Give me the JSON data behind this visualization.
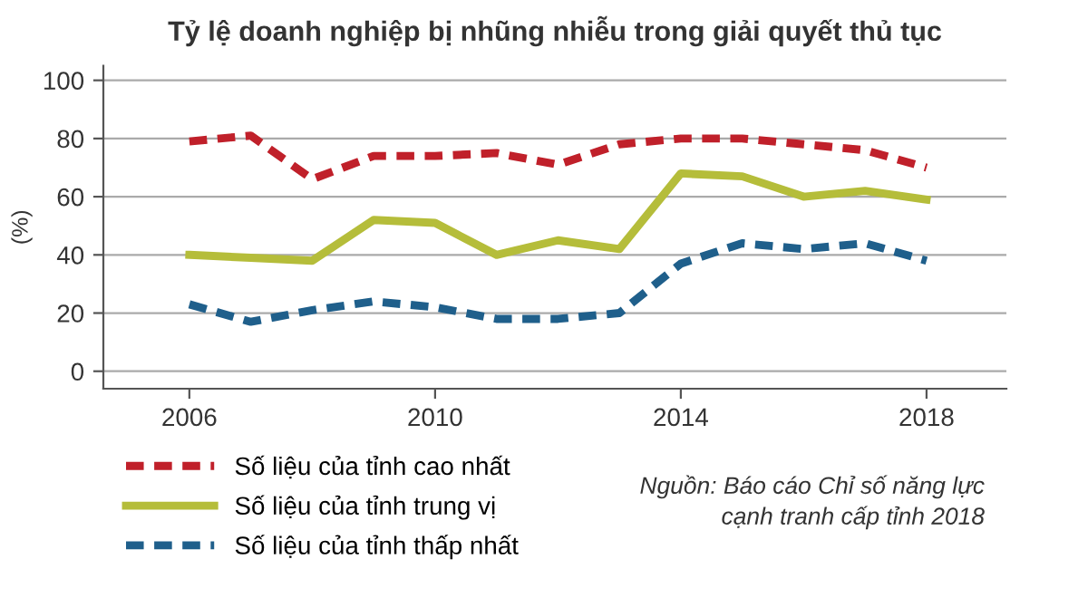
{
  "chart_data": {
    "type": "line",
    "title": "Tỷ lệ doanh nghiệp bị nhũng nhiễu trong giải quyết thủ tục",
    "ylabel": "(%)",
    "x": [
      2006,
      2007,
      2008,
      2009,
      2010,
      2011,
      2012,
      2013,
      2014,
      2015,
      2016,
      2017,
      2018
    ],
    "series": [
      {
        "name": "Số liệu của tỉnh cao nhất",
        "color": "#c0202a",
        "line_style": "dashed",
        "values": [
          79,
          81,
          66,
          74,
          74,
          75,
          71,
          78,
          80,
          80,
          78,
          76,
          70
        ]
      },
      {
        "name": "Số liệu của tỉnh trung vị",
        "color": "#b5bd3a",
        "line_style": "solid",
        "values": [
          40,
          39,
          38,
          52,
          51,
          40,
          45,
          42,
          68,
          67,
          60,
          62,
          59
        ]
      },
      {
        "name": "Số liệu của tỉnh thấp nhất",
        "color": "#1f5f8b",
        "line_style": "dashed",
        "values": [
          23,
          17,
          21,
          24,
          22,
          18,
          18,
          20,
          37,
          44,
          42,
          44,
          38
        ]
      }
    ],
    "xlim": [
      2004.6,
      2019.3
    ],
    "ylim": [
      -6,
      105
    ],
    "xticks": [
      2006,
      2010,
      2014,
      2018
    ],
    "yticks": [
      0,
      20,
      40,
      60,
      80,
      100
    ],
    "grid": "y",
    "legend": "bottom left",
    "marker": "none",
    "annotations": [
      "Nguồn: Báo cáo Chỉ số năng lực\ncạnh tranh cấp tỉnh 2018"
    ]
  }
}
